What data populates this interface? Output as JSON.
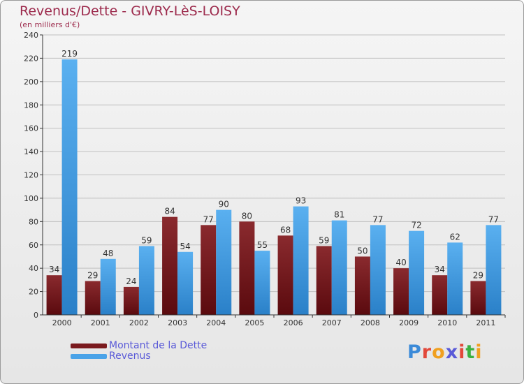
{
  "title": "Revenus/Dette - GIVRY-LèS-LOISY",
  "subtitle": "(en milliers d'€)",
  "legend": [
    {
      "label": "Montant de la Dette",
      "color": "#7a1a1e"
    },
    {
      "label": "Revenus",
      "color": "#4aa3e8"
    }
  ],
  "logo": {
    "text": "Proxiti",
    "colors": [
      "#3b8ad8",
      "#e2483a",
      "#f0a020",
      "#5a5ad8",
      "#e2483a",
      "#3bb040",
      "#f0a020"
    ]
  },
  "colors": {
    "dette_top": "#8a2a2e",
    "dette_bottom": "#5a0a0e",
    "revenus_top": "#5ab0f0",
    "revenus_bottom": "#2a80c8",
    "axis": "#333333",
    "grid": "#c0c0c0",
    "label": "#333333"
  },
  "chart_data": {
    "type": "bar",
    "title": "Revenus/Dette - GIVRY-LèS-LOISY",
    "ylabel": "(en milliers d'€)",
    "categories": [
      "2000",
      "2001",
      "2002",
      "2003",
      "2004",
      "2005",
      "2006",
      "2007",
      "2008",
      "2009",
      "2010",
      "2011"
    ],
    "series": [
      {
        "name": "Montant de la Dette",
        "values": [
          34,
          29,
          24,
          84,
          77,
          80,
          68,
          59,
          50,
          40,
          34,
          29
        ]
      },
      {
        "name": "Revenus",
        "values": [
          219,
          48,
          59,
          54,
          90,
          55,
          93,
          81,
          77,
          72,
          62,
          77
        ]
      }
    ],
    "ylim": [
      0,
      240
    ],
    "yticks": [
      0,
      20,
      40,
      60,
      80,
      100,
      120,
      140,
      160,
      180,
      200,
      220,
      240
    ],
    "grid": true,
    "legend_position": "bottom-left"
  }
}
